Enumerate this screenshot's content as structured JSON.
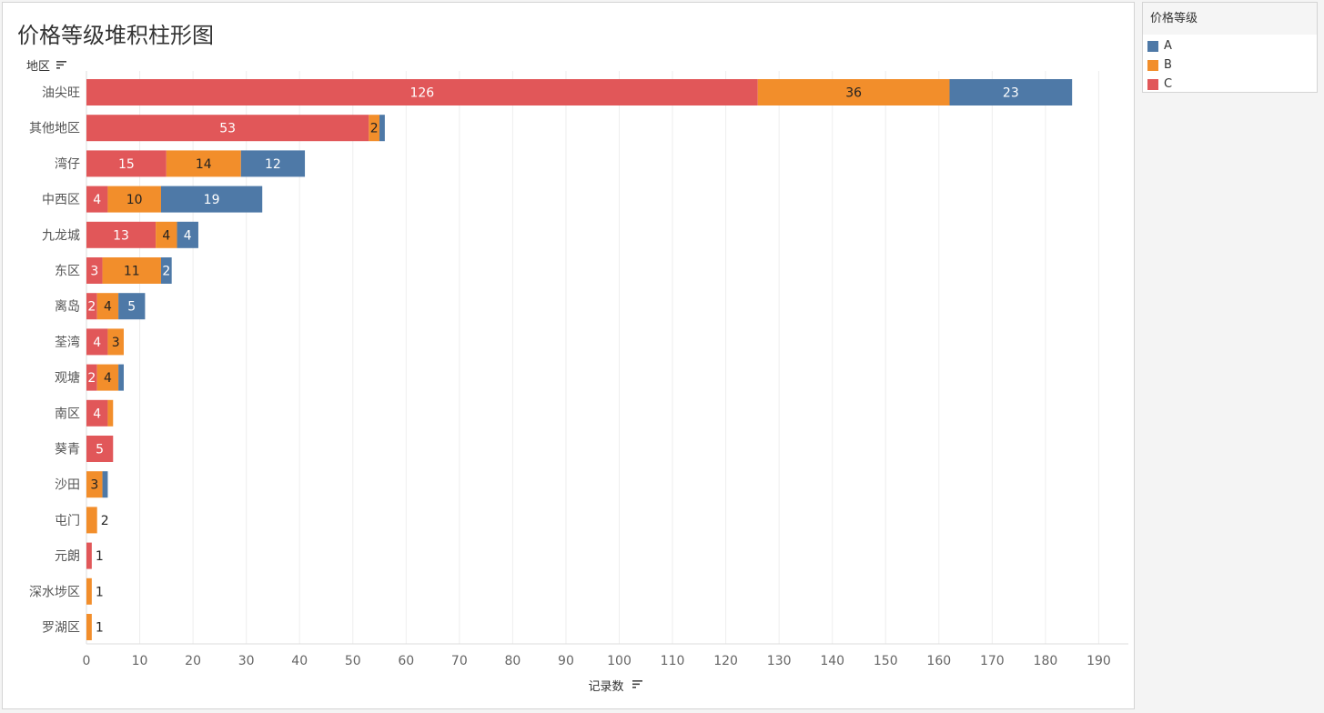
{
  "chart_data": {
    "type": "bar",
    "orientation": "horizontal",
    "stacked": true,
    "title": "价格等级堆积柱形图",
    "ylabel": "地区",
    "xlabel": "记录数",
    "xlim": [
      0,
      195
    ],
    "xticks": [
      0,
      10,
      20,
      30,
      40,
      50,
      60,
      70,
      80,
      90,
      100,
      110,
      120,
      130,
      140,
      150,
      160,
      170,
      180,
      190
    ],
    "grid": true,
    "legend_position": "top-right",
    "categories": [
      "油尖旺",
      "其他地区",
      "湾仔",
      "中西区",
      "九龙城",
      "东区",
      "离岛",
      "荃湾",
      "观塘",
      "南区",
      "葵青",
      "沙田",
      "屯门",
      "元朗",
      "深水埗区",
      "罗湖区"
    ],
    "series": [
      {
        "name": "C",
        "color": "#e15759",
        "label_color": "#ffffff",
        "values": [
          126,
          53,
          15,
          4,
          13,
          3,
          2,
          4,
          2,
          4,
          5,
          0,
          0,
          1,
          0,
          0
        ]
      },
      {
        "name": "B",
        "color": "#f28e2b",
        "label_color": "#222222",
        "values": [
          36,
          2,
          14,
          10,
          4,
          11,
          4,
          3,
          4,
          1,
          0,
          3,
          2,
          0,
          1,
          1
        ]
      },
      {
        "name": "A",
        "color": "#4e79a7",
        "label_color": "#ffffff",
        "values": [
          23,
          1,
          12,
          19,
          4,
          2,
          5,
          0,
          1,
          0,
          0,
          1,
          0,
          0,
          0,
          0
        ]
      }
    ],
    "visible_labels": [
      [
        "126",
        "36",
        "23"
      ],
      [
        "53",
        "2",
        ""
      ],
      [
        "15",
        "14",
        "12"
      ],
      [
        "4",
        "10",
        "19"
      ],
      [
        "13",
        "4",
        "4"
      ],
      [
        "3",
        "11",
        "2"
      ],
      [
        "2",
        "4",
        "5"
      ],
      [
        "4",
        "3",
        ""
      ],
      [
        "2",
        "4",
        ""
      ],
      [
        "4",
        "",
        ""
      ],
      [
        "5",
        "",
        ""
      ],
      [
        "",
        "3",
        ""
      ],
      [
        "",
        "2",
        ""
      ],
      [
        "1",
        "",
        ""
      ],
      [
        "",
        "1",
        ""
      ],
      [
        "",
        "1",
        ""
      ]
    ]
  },
  "legend": {
    "title": "价格等级",
    "items": [
      {
        "label": "A",
        "color": "#4e79a7"
      },
      {
        "label": "B",
        "color": "#f28e2b"
      },
      {
        "label": "C",
        "color": "#e15759"
      }
    ]
  },
  "icons": {
    "sort": "sort-descending-icon"
  },
  "colors": {
    "gridline": "#eeeeee",
    "panel_border": "#d4d4d4",
    "background": "#f4f4f4"
  }
}
